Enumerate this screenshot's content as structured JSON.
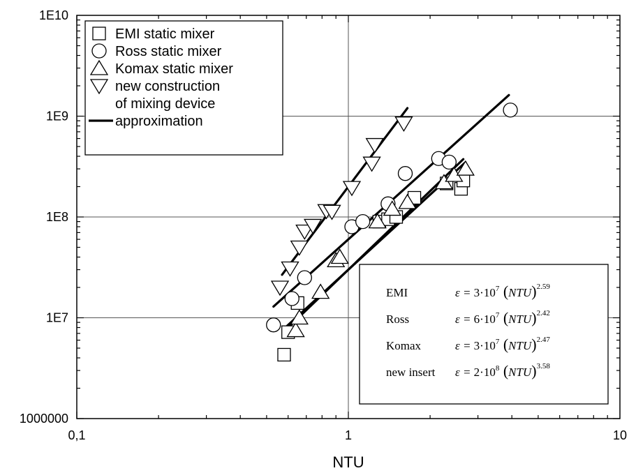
{
  "chart_data": {
    "type": "scatter",
    "title": "",
    "xlabel": "NTU",
    "ylabel": "",
    "x_scale": "log",
    "y_scale": "log",
    "xlim": [
      0.1,
      10
    ],
    "ylim": [
      1000000,
      10000000000
    ],
    "x_ticks": [
      0.1,
      1,
      10
    ],
    "x_tick_labels": [
      "0,1",
      "1",
      "10"
    ],
    "y_ticks": [
      1000000,
      10000000,
      100000000,
      1000000000,
      10000000000
    ],
    "y_tick_labels": [
      "1000000",
      "1E7",
      "1E8",
      "1E9",
      "1E10"
    ],
    "grid": "major",
    "legend_position": "top-left",
    "series": [
      {
        "name": "EMI static mixer",
        "marker": "square",
        "points": [
          [
            0.58,
            4300000
          ],
          [
            0.6,
            7200000
          ],
          [
            0.65,
            14000000
          ],
          [
            1.3,
            90000000
          ],
          [
            1.4,
            95000000
          ],
          [
            1.5,
            100000000
          ],
          [
            1.75,
            155000000
          ],
          [
            2.3,
            215000000
          ],
          [
            2.6,
            190000000
          ],
          [
            2.65,
            230000000
          ]
        ],
        "fit": {
          "label": "EMI",
          "coef": 30000000,
          "exp": 2.59,
          "x_range": [
            0.58,
            2.65
          ]
        }
      },
      {
        "name": "Ross static mixer",
        "marker": "circle",
        "points": [
          [
            0.53,
            8500000
          ],
          [
            0.62,
            15500000
          ],
          [
            0.69,
            25000000
          ],
          [
            1.03,
            80000000
          ],
          [
            1.13,
            90000000
          ],
          [
            1.4,
            135000000
          ],
          [
            1.62,
            270000000
          ],
          [
            2.15,
            380000000
          ],
          [
            2.35,
            350000000
          ],
          [
            3.95,
            1150000000
          ]
        ],
        "fit": {
          "label": "Ross",
          "coef": 60000000,
          "exp": 2.42,
          "x_range": [
            0.53,
            3.9
          ]
        }
      },
      {
        "name": "Komax static mixer",
        "marker": "triangle-up",
        "points": [
          [
            0.64,
            7500000
          ],
          [
            0.66,
            10000000
          ],
          [
            0.79,
            18000000
          ],
          [
            0.9,
            37000000
          ],
          [
            0.93,
            40000000
          ],
          [
            1.28,
            90000000
          ],
          [
            1.45,
            120000000
          ],
          [
            1.65,
            140000000
          ],
          [
            2.25,
            220000000
          ],
          [
            2.45,
            260000000
          ],
          [
            2.7,
            300000000
          ]
        ],
        "fit": {
          "label": "Komax",
          "coef": 30000000,
          "exp": 2.47,
          "x_range": [
            0.58,
            2.7
          ]
        }
      },
      {
        "name": "new construction\nof mixing device",
        "marker": "triangle-down",
        "points": [
          [
            0.56,
            20000000
          ],
          [
            0.61,
            31000000
          ],
          [
            0.66,
            50000000
          ],
          [
            0.69,
            72000000
          ],
          [
            0.74,
            82000000
          ],
          [
            0.83,
            115000000
          ],
          [
            0.87,
            113000000
          ],
          [
            1.03,
            195000000
          ],
          [
            1.22,
            340000000
          ],
          [
            1.25,
            520000000
          ],
          [
            1.6,
            850000000
          ]
        ],
        "fit": {
          "label": "new insert",
          "coef": 200000000,
          "exp": 3.58,
          "x_range": [
            0.57,
            1.65
          ]
        }
      }
    ],
    "approximation_label": "approximation",
    "equations": [
      {
        "name": "EMI",
        "coef_mantissa": "3",
        "coef_exp": "7",
        "power": "2.59"
      },
      {
        "name": "Ross",
        "coef_mantissa": "6",
        "coef_exp": "7",
        "power": "2.42"
      },
      {
        "name": "Komax",
        "coef_mantissa": "3",
        "coef_exp": "7",
        "power": "2.47"
      },
      {
        "name": "new insert",
        "coef_mantissa": "2",
        "coef_exp": "8",
        "power": "3.58"
      }
    ],
    "equation_symbol": "ε",
    "equation_var": "NTU"
  }
}
